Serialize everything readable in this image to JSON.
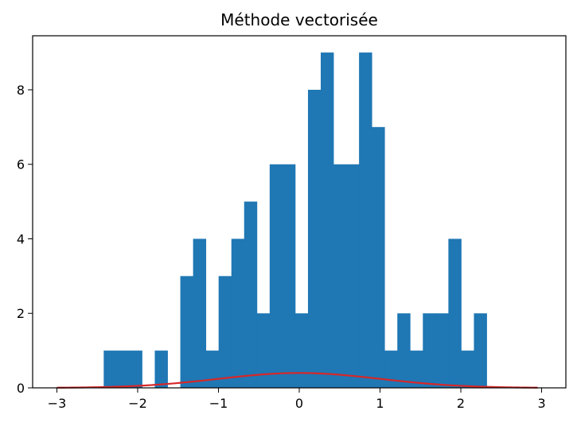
{
  "chart_data": {
    "type": "bar",
    "title": "Méthode vectorisée",
    "xlabel": "",
    "ylabel": "",
    "xlim": [
      -3.3,
      3.3
    ],
    "ylim": [
      0,
      9.45
    ],
    "xticks": [
      -3,
      -2,
      -1,
      0,
      1,
      2,
      3
    ],
    "xtick_labels": [
      "−3",
      "−2",
      "−1",
      "0",
      "1",
      "2",
      "3"
    ],
    "yticks": [
      0,
      2,
      4,
      6,
      8
    ],
    "ytick_labels": [
      "0",
      "2",
      "4",
      "6",
      "8"
    ],
    "grid": false,
    "histogram": {
      "bin_start": -2.42,
      "bin_width": 0.158,
      "counts": [
        1,
        1,
        1,
        0,
        1,
        0,
        3,
        4,
        1,
        3,
        4,
        5,
        2,
        6,
        6,
        2,
        8,
        9,
        6,
        6,
        9,
        7,
        1,
        2,
        1,
        2,
        2,
        4,
        1,
        2
      ],
      "color": "#1f77b4"
    },
    "curve": {
      "name": "",
      "type": "normal_pdf",
      "mean": 0,
      "std": 1,
      "x_range": [
        -3,
        2.95
      ],
      "color": "#d62728"
    }
  }
}
